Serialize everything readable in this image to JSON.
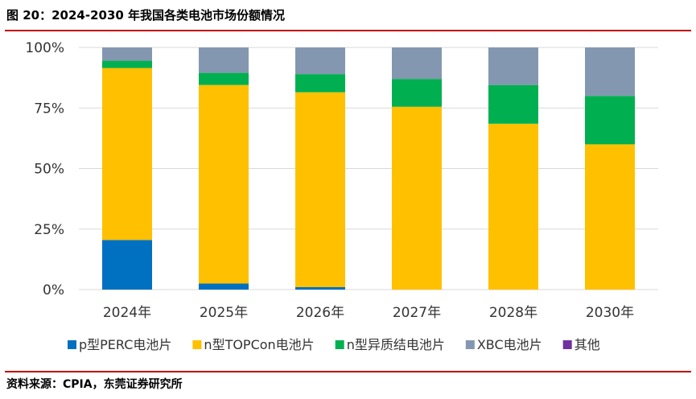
{
  "figure": {
    "title": "图 20：2024-2030 年我国各类电池市场份额情况",
    "source": "资料来源：CPIA，东莞证券研究所"
  },
  "colors": {
    "rule": "#c00000",
    "gridline": "#d9d9d9"
  },
  "chart_data": {
    "type": "bar",
    "stacked": true,
    "percent": true,
    "categories": [
      "2024年",
      "2025年",
      "2026年",
      "2027年",
      "2028年",
      "2030年"
    ],
    "series": [
      {
        "name": "p型PERC电池片",
        "color": "#0070c0",
        "values": [
          20.5,
          2.5,
          1,
          0,
          0,
          0
        ]
      },
      {
        "name": "n型TOPCon电池片",
        "color": "#ffc000",
        "values": [
          71.0,
          82.0,
          80.5,
          75.5,
          68.5,
          60.0
        ]
      },
      {
        "name": "n型异质结电池片",
        "color": "#00b050",
        "values": [
          3.0,
          5.0,
          7.5,
          11.5,
          16.0,
          20.0
        ]
      },
      {
        "name": "XBC电池片",
        "color": "#8497b0",
        "values": [
          5.5,
          10.5,
          11.0,
          13.0,
          15.5,
          20.0
        ]
      },
      {
        "name": "其他",
        "color": "#7030a0",
        "values": [
          0,
          0,
          0,
          0,
          0,
          0
        ]
      }
    ],
    "yticks": [
      "0%",
      "25%",
      "50%",
      "75%",
      "100%"
    ],
    "ytick_values": [
      0,
      25,
      50,
      75,
      100
    ],
    "ylim": [
      0,
      100
    ],
    "grid": true,
    "legend": "bottom"
  }
}
